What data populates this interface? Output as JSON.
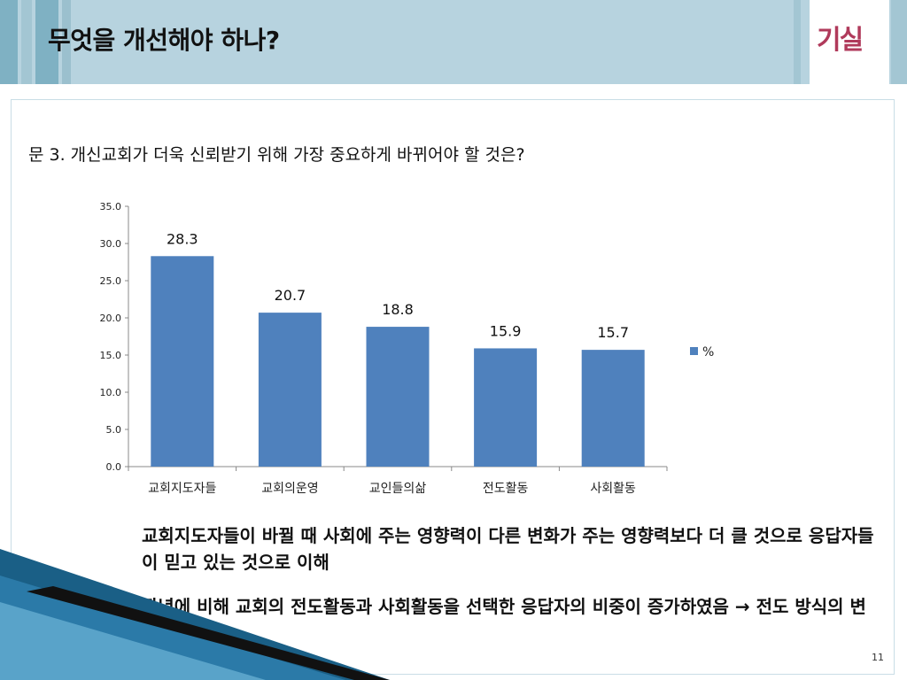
{
  "slide": {
    "title": "무엇을 개선해야 하나?",
    "logo_text": "기실",
    "question": "문 3. 개신교회가 더욱 신뢰받기 위해 가장 중요하게 바뀌어야 할 것은?",
    "bullets": [
      "교회지도자들이 바뀔 때 사회에 주는 영향력이 다른 변화가 주는 영향력보다 더 클 것으로 응답자들이 믿고 있는 것으로 이해",
      "작년에 비해 교회의 전도활동과 사회활동을 선택한 응답자의 비중이 증가하였음 → 전도 방식의 변화 필요"
    ],
    "page_number": "11"
  },
  "colors": {
    "bar": "#4f81bd",
    "header": "#b7d3df",
    "header_stripe": "#7fb1c3",
    "logo": "#b03a5b"
  },
  "chart_data": {
    "type": "bar",
    "categories": [
      "교회지도자들",
      "교회의운영",
      "교인들의삶",
      "전도활동",
      "사회활동"
    ],
    "series": [
      {
        "name": "%",
        "values": [
          28.3,
          20.7,
          18.8,
          15.9,
          15.7
        ]
      }
    ],
    "data_labels": [
      "28.3",
      "20.7",
      "18.8",
      "15.9",
      "15.7"
    ],
    "yticks": [
      "0.0",
      "5.0",
      "10.0",
      "15.0",
      "20.0",
      "25.0",
      "30.0",
      "35.0"
    ],
    "ylim": [
      0,
      35
    ],
    "legend_position": "right",
    "grid": false
  }
}
